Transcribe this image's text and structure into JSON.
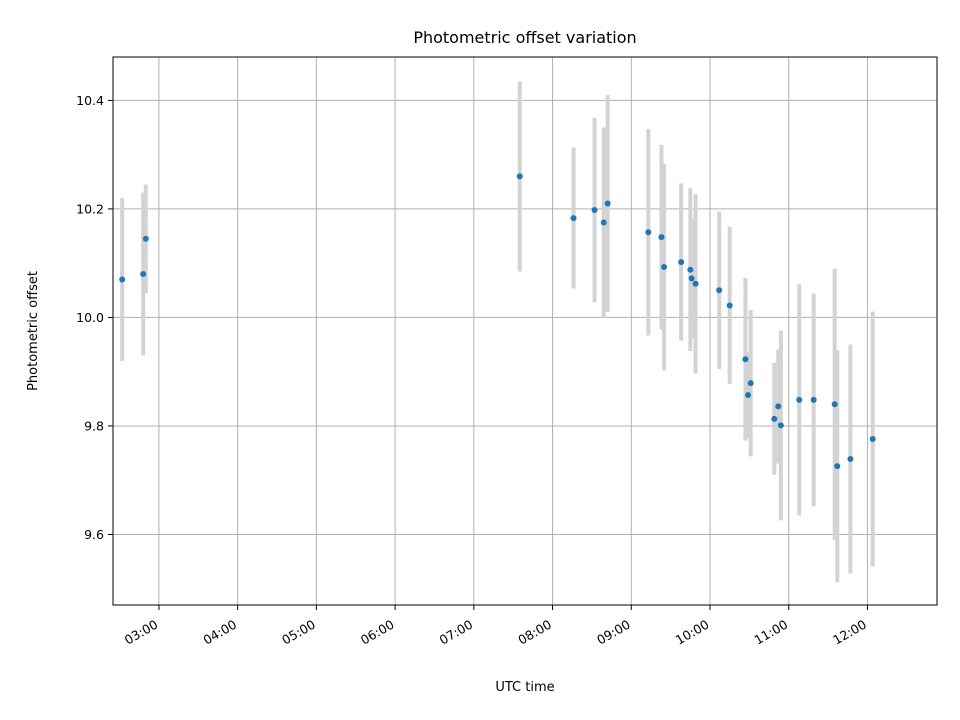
{
  "chart_data": {
    "type": "scatter",
    "title": "Photometric offset variation",
    "xlabel": "UTC time",
    "ylabel": "Photometric offset",
    "grid": true,
    "legend": "none",
    "xlim": [
      "02:25",
      "12:53"
    ],
    "ylim": [
      9.47,
      10.48
    ],
    "x_ticks": [
      "03:00",
      "04:00",
      "05:00",
      "06:00",
      "07:00",
      "08:00",
      "09:00",
      "10:00",
      "11:00",
      "12:00"
    ],
    "y_ticks": [
      9.6,
      9.8,
      10.0,
      10.2,
      10.4
    ],
    "y_tick_labels": [
      "9.6",
      "9.8",
      "10.0",
      "10.2",
      "10.4"
    ],
    "colors": {
      "marker": "#1f77b4",
      "errorbar": "#d3d3d3"
    },
    "points": [
      {
        "x": "02:32",
        "y": 10.07,
        "yerr": 0.15
      },
      {
        "x": "02:48",
        "y": 10.08,
        "yerr": 0.15
      },
      {
        "x": "02:50",
        "y": 10.145,
        "yerr": 0.1
      },
      {
        "x": "07:35",
        "y": 10.26,
        "yerr": 0.175
      },
      {
        "x": "08:16",
        "y": 10.183,
        "yerr": 0.13
      },
      {
        "x": "08:32",
        "y": 10.198,
        "yerr": 0.17
      },
      {
        "x": "08:39",
        "y": 10.175,
        "yerr": 0.175
      },
      {
        "x": "08:42",
        "y": 10.21,
        "yerr": 0.2
      },
      {
        "x": "09:13",
        "y": 10.157,
        "yerr": 0.19
      },
      {
        "x": "09:23",
        "y": 10.148,
        "yerr": 0.17
      },
      {
        "x": "09:25",
        "y": 10.093,
        "yerr": 0.19
      },
      {
        "x": "09:38",
        "y": 10.102,
        "yerr": 0.145
      },
      {
        "x": "09:45",
        "y": 10.088,
        "yerr": 0.15
      },
      {
        "x": "09:46",
        "y": 10.072,
        "yerr": 0.11
      },
      {
        "x": "09:49",
        "y": 10.062,
        "yerr": 0.165
      },
      {
        "x": "10:07",
        "y": 10.05,
        "yerr": 0.145
      },
      {
        "x": "10:15",
        "y": 10.022,
        "yerr": 0.145
      },
      {
        "x": "10:27",
        "y": 9.923,
        "yerr": 0.15
      },
      {
        "x": "10:29",
        "y": 9.857,
        "yerr": 0.08
      },
      {
        "x": "10:31",
        "y": 9.879,
        "yerr": 0.135
      },
      {
        "x": "10:49",
        "y": 9.813,
        "yerr": 0.103
      },
      {
        "x": "10:52",
        "y": 9.836,
        "yerr": 0.105
      },
      {
        "x": "10:54",
        "y": 9.801,
        "yerr": 0.175
      },
      {
        "x": "11:08",
        "y": 9.848,
        "yerr": 0.213
      },
      {
        "x": "11:19",
        "y": 9.848,
        "yerr": 0.196
      },
      {
        "x": "11:35",
        "y": 9.84,
        "yerr": 0.25
      },
      {
        "x": "11:37",
        "y": 9.726,
        "yerr": 0.214
      },
      {
        "x": "11:47",
        "y": 9.739,
        "yerr": 0.211
      },
      {
        "x": "12:04",
        "y": 9.776,
        "yerr": 0.235
      }
    ]
  }
}
